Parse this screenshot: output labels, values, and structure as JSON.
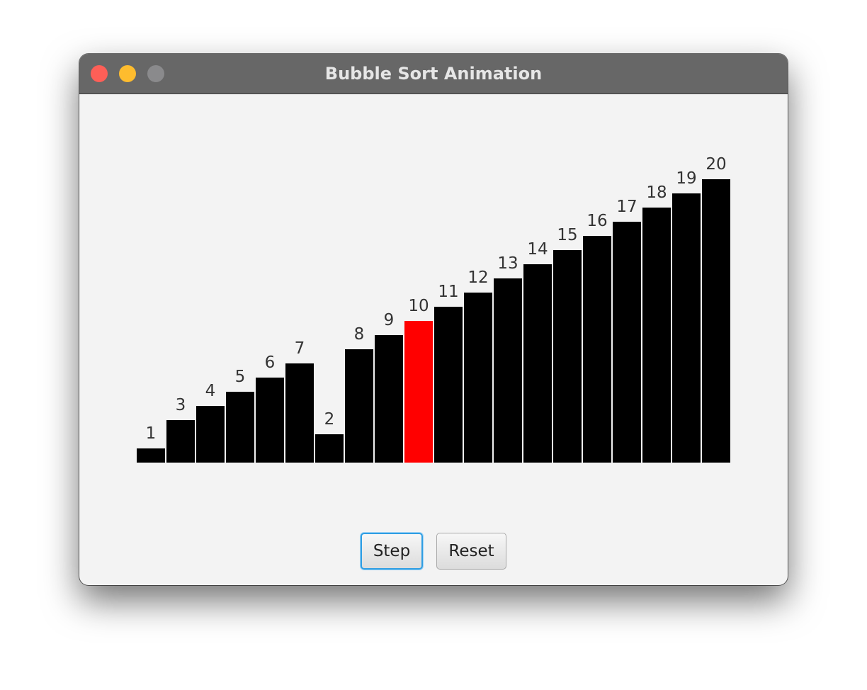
{
  "window": {
    "title": "Bubble Sort Animation"
  },
  "traffic_lights": {
    "close_color": "#fe5f57",
    "minimize_color": "#febc2e",
    "zoom_color": "#8a8a8c"
  },
  "chart_data": {
    "type": "bar",
    "values": [
      1,
      3,
      4,
      5,
      6,
      7,
      2,
      8,
      9,
      10,
      11,
      12,
      13,
      14,
      15,
      16,
      17,
      18,
      19,
      20
    ],
    "labels": [
      "1",
      "3",
      "4",
      "5",
      "6",
      "7",
      "2",
      "8",
      "9",
      "10",
      "11",
      "12",
      "13",
      "14",
      "15",
      "16",
      "17",
      "18",
      "19",
      "20"
    ],
    "highlight_index": 9,
    "bar_color": "#000000",
    "highlight_color": "#ff0000",
    "label_color": "#333333"
  },
  "buttons": {
    "step_label": "Step",
    "reset_label": "Reset"
  }
}
